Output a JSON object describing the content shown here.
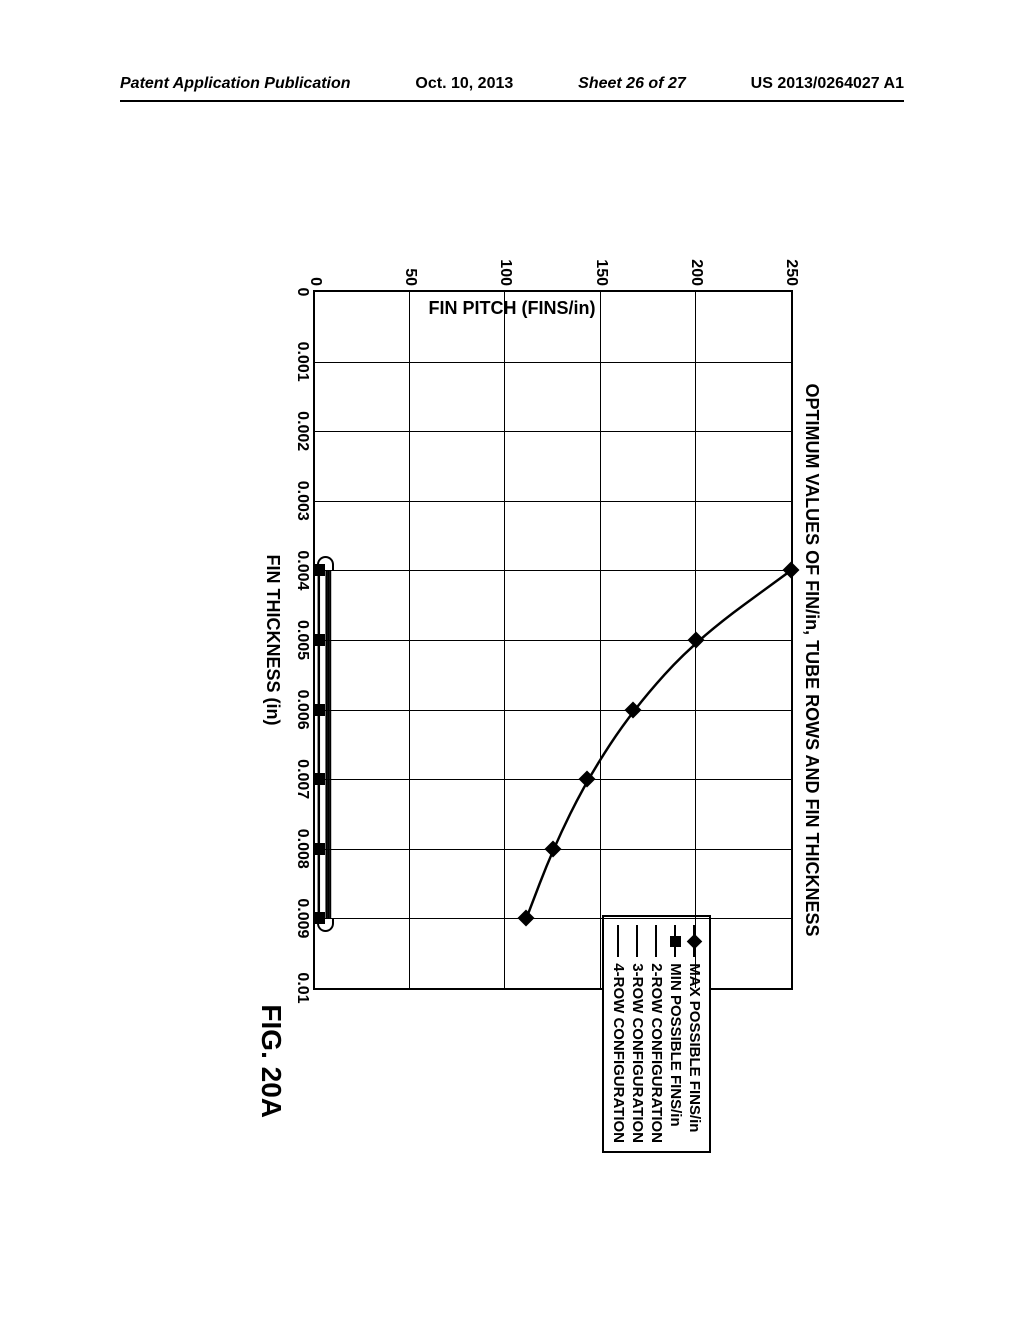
{
  "header": {
    "left": "Patent Application Publication",
    "date": "Oct. 10, 2013",
    "sheet": "Sheet 26 of 27",
    "pub_num": "US 2013/0264027 A1"
  },
  "chart": {
    "type": "line",
    "title": "OPTIMUM VALUES OF FIN/in, TUBE ROWS AND FIN THICKNESS",
    "xlabel": "FIN THICKNESS (in)",
    "ylabel": "FIN PITCH (FINS/in)",
    "fig_label": "FIG. 20A",
    "xlim": [
      0,
      0.01
    ],
    "ylim": [
      0,
      250
    ],
    "xticks": [
      "0",
      "0.001",
      "0.002",
      "0.003",
      "0.004",
      "0.005",
      "0.006",
      "0.007",
      "0.008",
      "0.009",
      "0.01"
    ],
    "yticks": [
      "0",
      "50",
      "100",
      "150",
      "200",
      "250"
    ],
    "xtick_positions_pct": [
      0,
      10,
      20,
      30,
      40,
      50,
      60,
      70,
      80,
      90,
      100
    ],
    "ytick_positions_pct": [
      100,
      80,
      60,
      40,
      20,
      0
    ],
    "background_color": "#ffffff",
    "grid_color": "#000000",
    "line_color": "#000000",
    "line_width": 2.5,
    "legend": {
      "items": [
        {
          "marker": "diamond",
          "label": "MAX POSSIBLE FINS/in"
        },
        {
          "marker": "square",
          "label": "MIN POSSIBLE FINS/in"
        },
        {
          "marker": "line",
          "label": "2-ROW CONFIGURATION"
        },
        {
          "marker": "line",
          "label": "3-ROW CONFIGURATION"
        },
        {
          "marker": "line",
          "label": "4-ROW CONFIGURATION"
        }
      ]
    },
    "series": {
      "max_possible": {
        "x": [
          0.004,
          0.005,
          0.006,
          0.007,
          0.008,
          0.009
        ],
        "y": [
          250,
          200,
          167,
          143,
          125,
          111
        ]
      },
      "min_possible": {
        "x": [
          0.004,
          0.005,
          0.006,
          0.007,
          0.008,
          0.009
        ],
        "y": [
          2,
          2,
          2,
          2,
          2,
          2
        ]
      },
      "row_configs": {
        "x": [
          0.004,
          0.005,
          0.006,
          0.007,
          0.008,
          0.009
        ],
        "y2": [
          8,
          8,
          8,
          8,
          8,
          8
        ],
        "y3": [
          7,
          7,
          7,
          7,
          7,
          7
        ],
        "y4": [
          6,
          6,
          6,
          6,
          6,
          6
        ]
      }
    }
  }
}
